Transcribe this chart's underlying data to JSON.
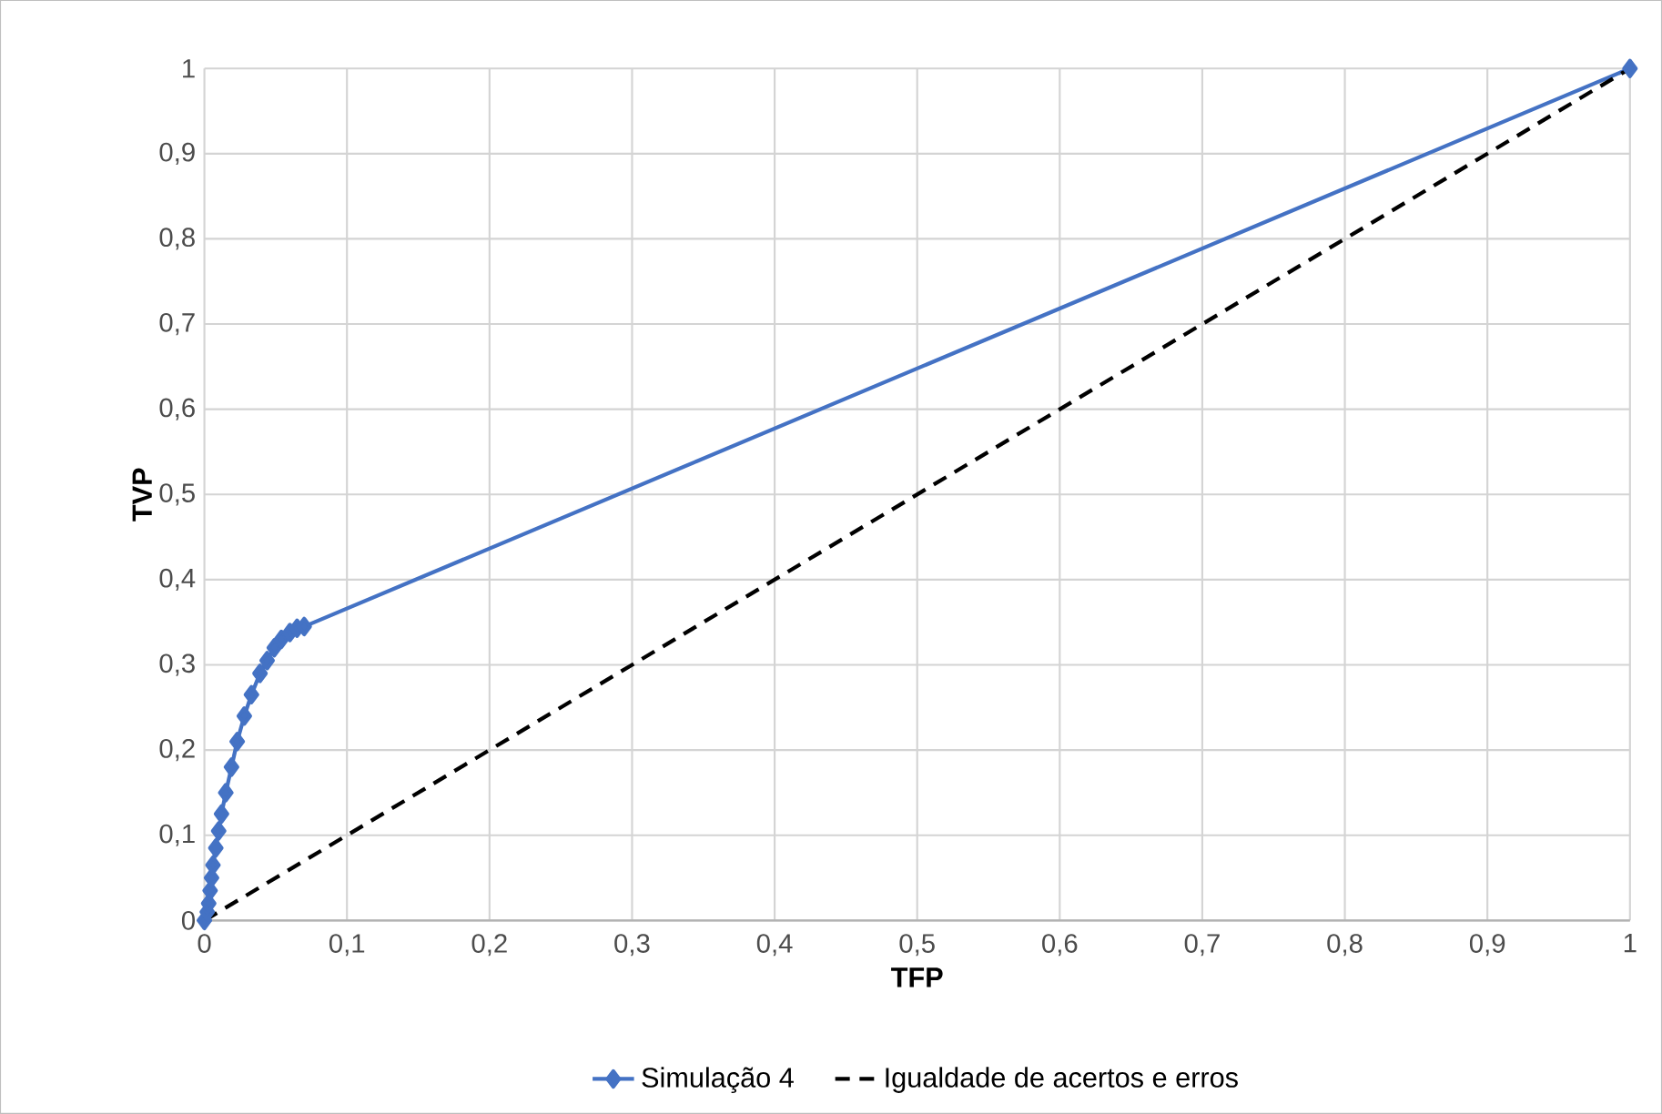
{
  "chart_data": {
    "type": "line",
    "xlabel": "TFP",
    "ylabel": "TVP",
    "xlim": [
      0,
      1
    ],
    "ylim": [
      0,
      1
    ],
    "xticks": [
      0,
      {
        "value": 0.1,
        "label": "0,1"
      },
      {
        "value": 0.2,
        "label": "0,2"
      },
      {
        "value": 0.3,
        "label": "0,3"
      },
      {
        "value": 0.4,
        "label": "0,4"
      },
      {
        "value": 0.5,
        "label": "0,5"
      },
      {
        "value": 0.6,
        "label": "0,6"
      },
      {
        "value": 0.7,
        "label": "0,7"
      },
      {
        "value": 0.8,
        "label": "0,8"
      },
      {
        "value": 0.9,
        "label": "0,9"
      },
      1
    ],
    "yticks": [
      0,
      {
        "value": 0.1,
        "label": "0,1"
      },
      {
        "value": 0.2,
        "label": "0,2"
      },
      {
        "value": 0.3,
        "label": "0,3"
      },
      {
        "value": 0.4,
        "label": "0,4"
      },
      {
        "value": 0.5,
        "label": "0,5"
      },
      {
        "value": 0.6,
        "label": "0,6"
      },
      {
        "value": 0.7,
        "label": "0,7"
      },
      {
        "value": 0.8,
        "label": "0,8"
      },
      {
        "value": 0.9,
        "label": "0,9"
      },
      1
    ],
    "grid": true,
    "legend": "bottom",
    "series": [
      {
        "name": "Simulação 4",
        "color": "#4472c4",
        "marker": "diamond",
        "line_style": "solid",
        "x": [
          0,
          0.002,
          0.003,
          0.004,
          0.005,
          0.006,
          0.008,
          0.01,
          0.012,
          0.015,
          0.019,
          0.023,
          0.028,
          0.033,
          0.039,
          0.044,
          0.049,
          0.054,
          0.06,
          0.065,
          0.07,
          1
        ],
        "values": [
          0,
          0.01,
          0.02,
          0.035,
          0.05,
          0.065,
          0.085,
          0.105,
          0.125,
          0.15,
          0.18,
          0.21,
          0.24,
          0.265,
          0.29,
          0.305,
          0.32,
          0.33,
          0.338,
          0.343,
          0.345,
          1
        ]
      },
      {
        "name": "Igualdade de acertos e erros",
        "color": "#000000",
        "marker": "none",
        "line_style": "dashed",
        "x": [
          0,
          1
        ],
        "values": [
          0,
          1
        ]
      }
    ]
  }
}
